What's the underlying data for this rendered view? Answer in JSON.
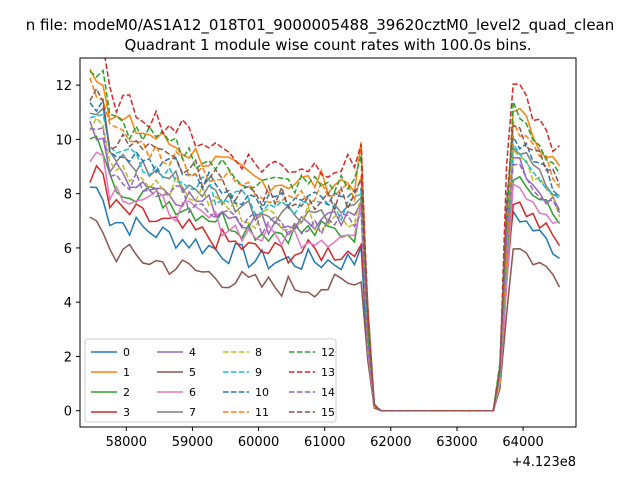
{
  "chart_data": {
    "type": "line",
    "suptitle": "n file: modeM0/AS1A12_018T01_9000005488_39620cztM0_level2_quad_clean",
    "title": "Quadrant 1 module wise count rates with 100.0s bins.",
    "xlabel": "",
    "ylabel": "",
    "x_offset_label": "+4.123e8",
    "xlim": [
      57300,
      64800
    ],
    "ylim": [
      -0.6,
      13
    ],
    "xticks": [
      58000,
      59000,
      60000,
      61000,
      62000,
      63000,
      64000
    ],
    "xtick_labels": [
      "58000",
      "59000",
      "60000",
      "61000",
      "62000",
      "63000",
      "64000"
    ],
    "yticks": [
      0,
      2,
      4,
      6,
      8,
      10,
      12
    ],
    "ytick_labels": [
      "0",
      "2",
      "4",
      "6",
      "8",
      "10",
      "12"
    ],
    "legend_placement": "lower-left",
    "legend_columns": 4,
    "grid": false,
    "series": [
      {
        "name": "0",
        "color": "#1f77b4",
        "dash": "solid",
        "level": 6.6
      },
      {
        "name": "1",
        "color": "#ff7f0e",
        "dash": "solid",
        "level": 10.1
      },
      {
        "name": "2",
        "color": "#2ca02c",
        "dash": "solid",
        "level": 7.9
      },
      {
        "name": "3",
        "color": "#d62728",
        "dash": "solid",
        "level": 7.0
      },
      {
        "name": "4",
        "color": "#9467bd",
        "dash": "solid",
        "level": 8.3
      },
      {
        "name": "5",
        "color": "#8c564b",
        "dash": "solid",
        "level": 5.5
      },
      {
        "name": "6",
        "color": "#e377c2",
        "dash": "solid",
        "level": 7.7
      },
      {
        "name": "7",
        "color": "#7f7f7f",
        "dash": "solid",
        "level": 8.8
      },
      {
        "name": "8",
        "color": "#bcbd22",
        "dash": "dashed",
        "level": 8.5
      },
      {
        "name": "9",
        "color": "#17becf",
        "dash": "dashed",
        "level": 8.9
      },
      {
        "name": "10",
        "color": "#1f77b4",
        "dash": "dashed",
        "level": 9.2
      },
      {
        "name": "11",
        "color": "#ff7f0e",
        "dash": "dashed",
        "level": 9.6
      },
      {
        "name": "12",
        "color": "#2ca02c",
        "dash": "dashed",
        "level": 10.0
      },
      {
        "name": "13",
        "color": "#d62728",
        "dash": "dashed",
        "level": 10.8
      },
      {
        "name": "14",
        "color": "#9467bd",
        "dash": "dashed",
        "level": 8.2
      },
      {
        "name": "15",
        "color": "#8c564b",
        "dash": "dashed",
        "level": 9.4
      }
    ],
    "time_profile": {
      "x_start": 57450,
      "x_end": 64550,
      "step": 100,
      "active_end": 61550,
      "fall": [
        [
          61650,
          0.35
        ],
        [
          61750,
          0.02
        ]
      ],
      "zero_until": 63550,
      "rise": [
        [
          63650,
          0.15
        ],
        [
          63750,
          0.7
        ]
      ],
      "decay_start_ratio": 1.25,
      "decay_end_ratio": 0.95,
      "post_peak_ratio": 1.15,
      "post_end_ratio": 0.88
    }
  }
}
